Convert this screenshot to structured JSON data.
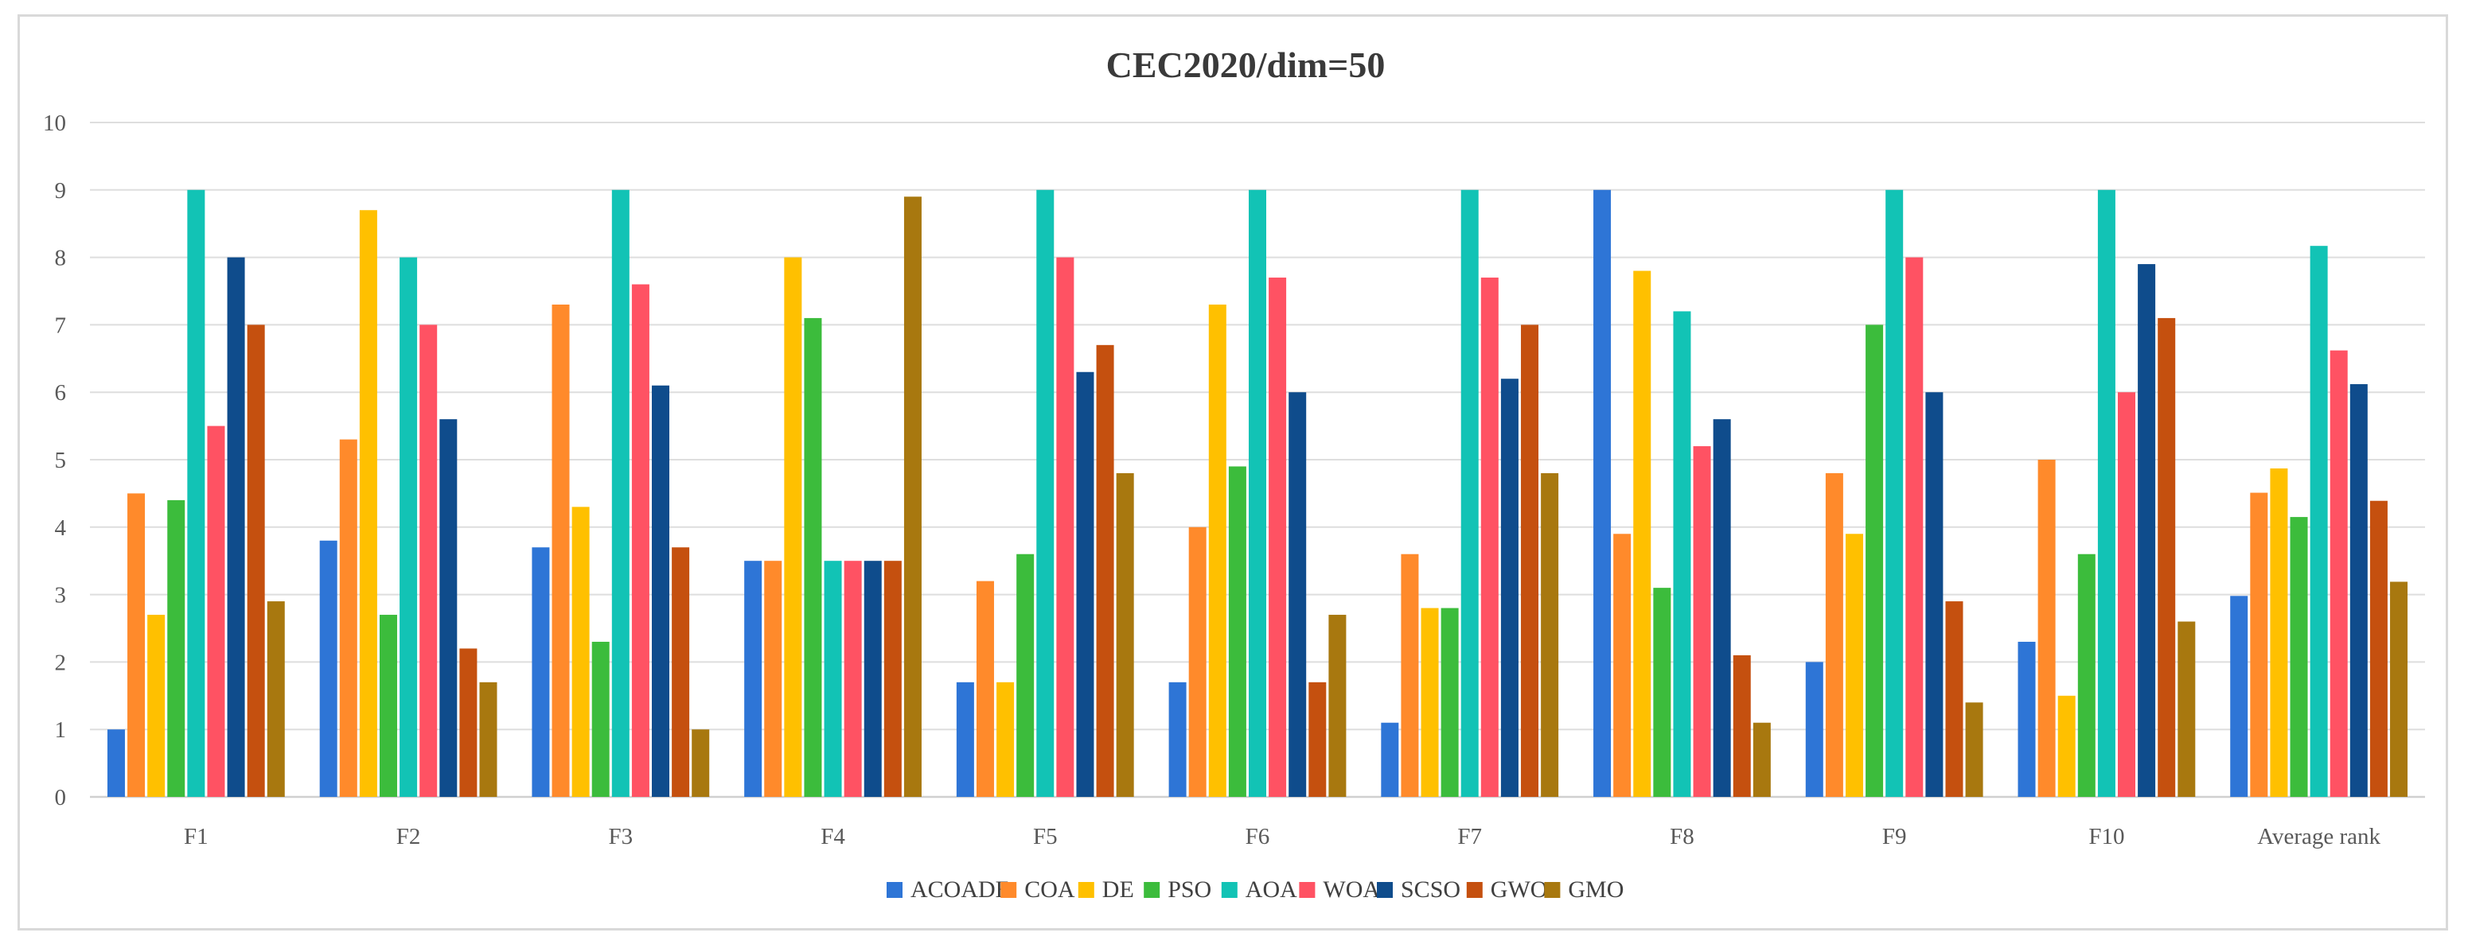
{
  "chart_data": {
    "type": "bar",
    "title": "CEC2020/dim=50",
    "xlabel": "",
    "ylabel": "",
    "ylim": [
      0,
      10
    ],
    "yticks": [
      "0",
      "1",
      "2",
      "3",
      "4",
      "5",
      "6",
      "7",
      "8",
      "9",
      "10"
    ],
    "grid": true,
    "legend_position": "bottom",
    "categories": [
      "F1",
      "F2",
      "F3",
      "F4",
      "F5",
      "F6",
      "F7",
      "F8",
      "F9",
      "F10",
      "Average rank"
    ],
    "series": [
      {
        "name": "ACOADE",
        "color": "#2e75d6",
        "values": [
          1,
          3.8,
          3.7,
          3.5,
          1.7,
          1.7,
          1.1,
          9,
          2,
          2.3,
          2.98
        ]
      },
      {
        "name": "COA",
        "color": "#ff8a2b",
        "values": [
          4.5,
          5.3,
          7.3,
          3.5,
          3.2,
          4,
          3.6,
          3.9,
          4.8,
          5,
          4.51
        ]
      },
      {
        "name": "DE",
        "color": "#ffc000",
        "values": [
          2.7,
          8.7,
          4.3,
          8,
          1.7,
          7.3,
          2.8,
          7.8,
          3.9,
          1.5,
          4.87
        ]
      },
      {
        "name": "PSO",
        "color": "#3cbc3c",
        "values": [
          4.4,
          2.7,
          2.3,
          7.1,
          3.6,
          4.9,
          2.8,
          3.1,
          7,
          3.6,
          4.15
        ]
      },
      {
        "name": "AOA",
        "color": "#12c3b5",
        "values": [
          9,
          8,
          9,
          3.5,
          9,
          9,
          9,
          7.2,
          9,
          9,
          8.17
        ]
      },
      {
        "name": "WOA",
        "color": "#ff5263",
        "values": [
          5.5,
          7,
          7.6,
          3.5,
          8,
          7.7,
          7.7,
          5.2,
          8,
          6,
          6.62
        ]
      },
      {
        "name": "SCSO",
        "color": "#0f4c8c",
        "values": [
          8,
          5.6,
          6.1,
          3.5,
          6.3,
          6,
          6.2,
          5.6,
          6,
          7.9,
          6.12
        ]
      },
      {
        "name": "GWO",
        "color": "#c5500f",
        "values": [
          7,
          2.2,
          3.7,
          3.5,
          6.7,
          1.7,
          7,
          2.1,
          2.9,
          7.1,
          4.39
        ]
      },
      {
        "name": "GMO",
        "color": "#a8780f",
        "values": [
          2.9,
          1.7,
          1,
          8.9,
          4.8,
          2.7,
          4.8,
          1.1,
          1.4,
          2.6,
          3.19
        ]
      }
    ]
  }
}
